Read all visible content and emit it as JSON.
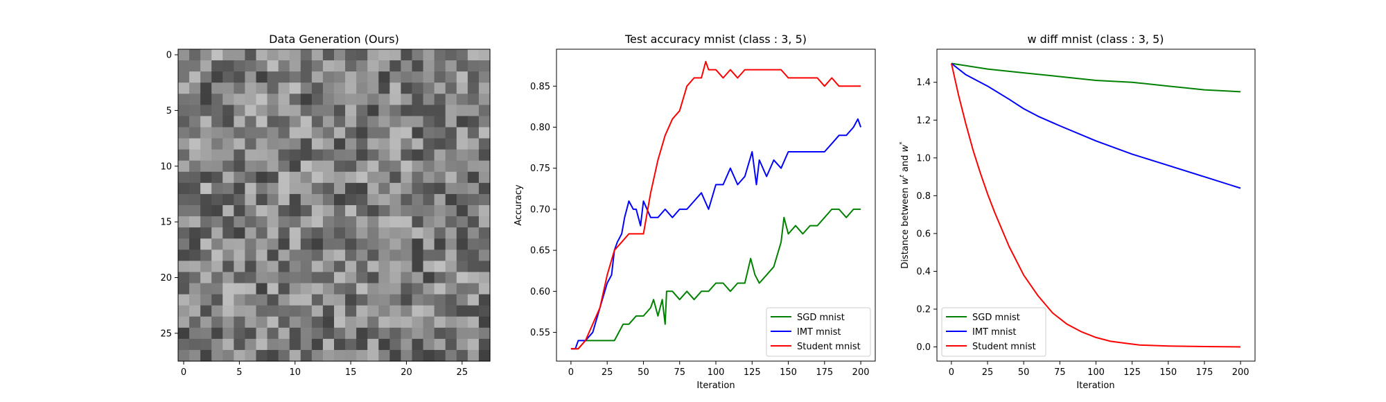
{
  "chart_data": [
    {
      "type": "heatmap",
      "title": "Data Generation (Ours)",
      "rows": 28,
      "cols": 28,
      "colormap": "gray",
      "xticks": [
        "0",
        "5",
        "10",
        "15",
        "20",
        "25"
      ],
      "yticks": [
        "0",
        "5",
        "10",
        "15",
        "20",
        "25"
      ],
      "values": []
    },
    {
      "type": "line",
      "title": "Test accuracy mnist (class : 3, 5)",
      "xlabel": "Iteration",
      "ylabel": "Accuracy",
      "xlim": [
        -10,
        210
      ],
      "ylim": [
        0.515,
        0.895
      ],
      "xticks": [
        "0",
        "25",
        "50",
        "75",
        "100",
        "125",
        "150",
        "175",
        "200"
      ],
      "yticks": [
        "0.55",
        "0.60",
        "0.65",
        "0.70",
        "0.75",
        "0.80",
        "0.85"
      ],
      "legend_position": "lower-right",
      "series": [
        {
          "name": "SGD mnist",
          "color": "#008000",
          "x": [
            0,
            5,
            10,
            20,
            30,
            33,
            36,
            40,
            45,
            50,
            55,
            57,
            60,
            63,
            65,
            66,
            70,
            75,
            80,
            85,
            90,
            95,
            100,
            105,
            110,
            115,
            120,
            124,
            127,
            130,
            135,
            140,
            145,
            147,
            150,
            155,
            160,
            165,
            170,
            175,
            180,
            185,
            190,
            195,
            200
          ],
          "y": [
            0.53,
            0.53,
            0.54,
            0.54,
            0.54,
            0.55,
            0.56,
            0.56,
            0.57,
            0.57,
            0.58,
            0.59,
            0.57,
            0.59,
            0.56,
            0.6,
            0.6,
            0.59,
            0.6,
            0.59,
            0.6,
            0.6,
            0.61,
            0.61,
            0.6,
            0.61,
            0.61,
            0.64,
            0.62,
            0.61,
            0.62,
            0.63,
            0.66,
            0.69,
            0.67,
            0.68,
            0.67,
            0.68,
            0.68,
            0.69,
            0.7,
            0.7,
            0.69,
            0.7,
            0.7
          ]
        },
        {
          "name": "IMT mnist",
          "color": "#0000ff",
          "x": [
            0,
            3,
            5,
            10,
            15,
            20,
            25,
            28,
            30,
            32,
            35,
            37,
            40,
            43,
            45,
            48,
            50,
            55,
            60,
            65,
            70,
            75,
            80,
            85,
            90,
            95,
            100,
            105,
            110,
            115,
            120,
            125,
            128,
            130,
            135,
            140,
            145,
            150,
            155,
            160,
            165,
            170,
            175,
            180,
            185,
            190,
            195,
            198,
            200
          ],
          "y": [
            0.53,
            0.53,
            0.54,
            0.54,
            0.55,
            0.58,
            0.61,
            0.62,
            0.65,
            0.66,
            0.67,
            0.69,
            0.71,
            0.7,
            0.7,
            0.68,
            0.71,
            0.69,
            0.69,
            0.7,
            0.69,
            0.7,
            0.7,
            0.71,
            0.72,
            0.7,
            0.73,
            0.73,
            0.75,
            0.73,
            0.74,
            0.77,
            0.73,
            0.76,
            0.74,
            0.76,
            0.75,
            0.77,
            0.77,
            0.77,
            0.77,
            0.77,
            0.77,
            0.78,
            0.79,
            0.79,
            0.8,
            0.81,
            0.8
          ]
        },
        {
          "name": "Student mnist",
          "color": "#ff0000",
          "x": [
            0,
            5,
            10,
            15,
            20,
            25,
            30,
            35,
            40,
            45,
            50,
            55,
            60,
            65,
            70,
            75,
            80,
            85,
            90,
            93,
            95,
            100,
            105,
            110,
            115,
            120,
            125,
            130,
            135,
            140,
            145,
            150,
            155,
            160,
            165,
            170,
            175,
            180,
            185,
            190,
            195,
            200
          ],
          "y": [
            0.53,
            0.53,
            0.54,
            0.56,
            0.58,
            0.62,
            0.65,
            0.66,
            0.67,
            0.67,
            0.67,
            0.72,
            0.76,
            0.79,
            0.81,
            0.82,
            0.85,
            0.86,
            0.86,
            0.88,
            0.87,
            0.87,
            0.86,
            0.87,
            0.86,
            0.87,
            0.87,
            0.87,
            0.87,
            0.87,
            0.87,
            0.86,
            0.86,
            0.86,
            0.86,
            0.86,
            0.85,
            0.86,
            0.85,
            0.85,
            0.85,
            0.85
          ]
        }
      ]
    },
    {
      "type": "line",
      "title": "w diff mnist (class : 3, 5)",
      "xlabel": "Iteration",
      "ylabel": "Distance between w^t and w^*",
      "xlim": [
        -10,
        210
      ],
      "ylim": [
        -0.075,
        1.575
      ],
      "xticks": [
        "0",
        "25",
        "50",
        "75",
        "100",
        "125",
        "150",
        "175",
        "200"
      ],
      "yticks": [
        "0.0",
        "0.2",
        "0.4",
        "0.6",
        "0.8",
        "1.0",
        "1.2",
        "1.4"
      ],
      "legend_position": "lower-left",
      "series": [
        {
          "name": "SGD mnist",
          "color": "#008000",
          "x": [
            0,
            25,
            50,
            75,
            100,
            125,
            150,
            175,
            200
          ],
          "y": [
            1.5,
            1.47,
            1.45,
            1.43,
            1.41,
            1.4,
            1.38,
            1.36,
            1.35
          ]
        },
        {
          "name": "IMT mnist",
          "color": "#0000ff",
          "x": [
            0,
            10,
            25,
            40,
            50,
            60,
            75,
            100,
            125,
            150,
            175,
            200
          ],
          "y": [
            1.5,
            1.44,
            1.38,
            1.31,
            1.26,
            1.22,
            1.17,
            1.09,
            1.02,
            0.96,
            0.9,
            0.84
          ]
        },
        {
          "name": "Student mnist",
          "color": "#ff0000",
          "x": [
            0,
            5,
            10,
            15,
            20,
            25,
            30,
            40,
            50,
            60,
            70,
            80,
            90,
            100,
            110,
            120,
            130,
            150,
            175,
            200
          ],
          "y": [
            1.5,
            1.33,
            1.18,
            1.04,
            0.92,
            0.81,
            0.71,
            0.53,
            0.38,
            0.27,
            0.18,
            0.12,
            0.08,
            0.05,
            0.03,
            0.02,
            0.01,
            0.005,
            0.002,
            0.0
          ]
        }
      ]
    }
  ]
}
